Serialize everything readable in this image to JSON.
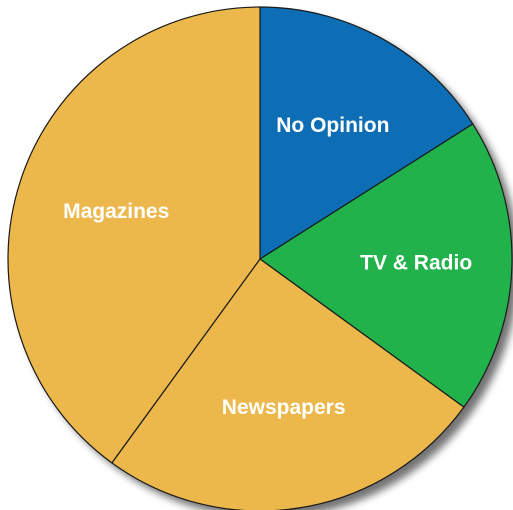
{
  "chart_data": {
    "type": "pie",
    "start_angle_deg": 0,
    "direction": "clockwise",
    "slices": [
      {
        "label": "No Opinion",
        "value": 16,
        "color": "#0d6eb6"
      },
      {
        "label": "TV & Radio",
        "value": 19,
        "color": "#21b24b"
      },
      {
        "label": "Newspapers",
        "value": 25,
        "color": "#ecb84c"
      },
      {
        "label": "Magazines",
        "value": 40,
        "color": "#ecb84c"
      }
    ],
    "stroke_color": "#1a1a1a",
    "shadow": true
  }
}
